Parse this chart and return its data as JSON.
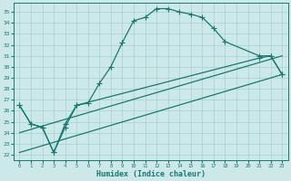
{
  "xlabel": "Humidex (Indice chaleur)",
  "bg_color": "#cce8e8",
  "grid_color": "#a8d0d0",
  "line_color": "#1a7870",
  "xlim": [
    -0.5,
    23.5
  ],
  "ylim": [
    21.5,
    35.8
  ],
  "xticks": [
    0,
    1,
    2,
    3,
    4,
    5,
    6,
    7,
    8,
    9,
    10,
    11,
    12,
    13,
    14,
    15,
    16,
    17,
    18,
    19,
    20,
    21,
    22,
    23
  ],
  "yticks": [
    22,
    23,
    24,
    25,
    26,
    27,
    28,
    29,
    30,
    31,
    32,
    33,
    34,
    35
  ],
  "line1_x": [
    0,
    1,
    2,
    3,
    4,
    5,
    6,
    7,
    8,
    9,
    10,
    11,
    12,
    13,
    14,
    15,
    16,
    17,
    18,
    21,
    22,
    23
  ],
  "line1_y": [
    26.5,
    24.8,
    24.5,
    22.2,
    24.5,
    26.5,
    26.7,
    28.5,
    30.0,
    32.2,
    34.2,
    34.5,
    35.3,
    35.3,
    35.0,
    34.8,
    34.5,
    33.5,
    32.3,
    31.0,
    31.0,
    29.3
  ],
  "line2_x": [
    0,
    1,
    2,
    3,
    4,
    5,
    21,
    22,
    23
  ],
  "line2_y": [
    26.5,
    24.8,
    24.5,
    22.2,
    24.8,
    26.5,
    30.8,
    31.0,
    29.3
  ],
  "line3_x": [
    0,
    23
  ],
  "line3_y": [
    22.2,
    29.3
  ],
  "line4_x": [
    0,
    23
  ],
  "line4_y": [
    24.0,
    31.0
  ],
  "marker": "+",
  "markersize": 4,
  "linewidth": 0.9
}
